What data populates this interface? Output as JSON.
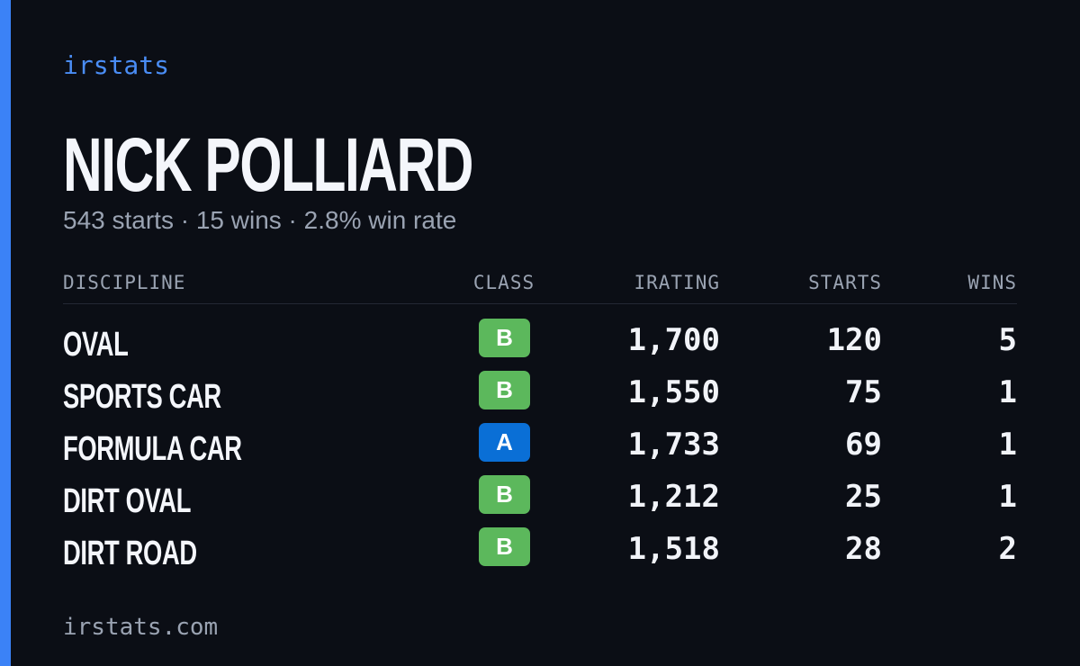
{
  "brand": "irstats",
  "driver": {
    "name": "NICK POLLIARD",
    "summary": "543 starts · 15 wins · 2.8% win rate"
  },
  "table": {
    "headers": {
      "discipline": "DISCIPLINE",
      "class": "CLASS",
      "irating": "IRATING",
      "starts": "STARTS",
      "wins": "WINS"
    },
    "rows": [
      {
        "discipline": "OVAL",
        "class": "B",
        "class_color": "#5cb85c",
        "irating": "1,700",
        "starts": "120",
        "wins": "5"
      },
      {
        "discipline": "SPORTS CAR",
        "class": "B",
        "class_color": "#5cb85c",
        "irating": "1,550",
        "starts": "75",
        "wins": "1"
      },
      {
        "discipline": "FORMULA CAR",
        "class": "A",
        "class_color": "#0a6fd6",
        "irating": "1,733",
        "starts": "69",
        "wins": "1"
      },
      {
        "discipline": "DIRT OVAL",
        "class": "B",
        "class_color": "#5cb85c",
        "irating": "1,212",
        "starts": "25",
        "wins": "1"
      },
      {
        "discipline": "DIRT ROAD",
        "class": "B",
        "class_color": "#5cb85c",
        "irating": "1,518",
        "starts": "28",
        "wins": "2"
      }
    ]
  },
  "footer": "irstats.com"
}
